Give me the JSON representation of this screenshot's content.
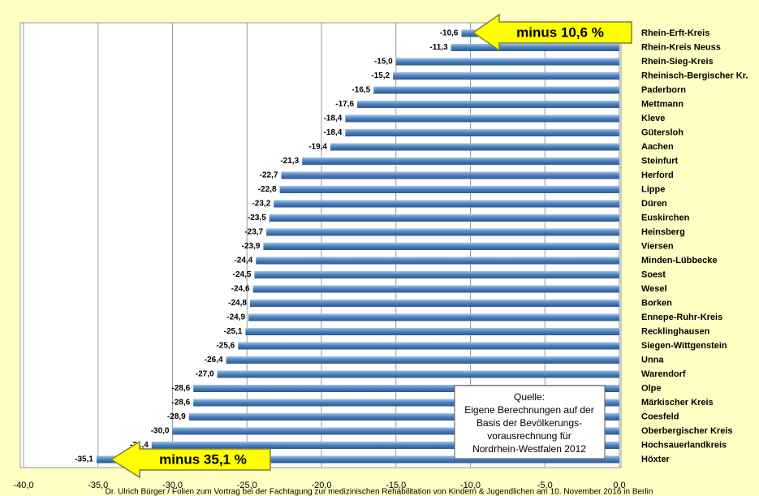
{
  "chart_data": {
    "type": "bar",
    "orientation": "horizontal",
    "categories": [
      "Rhein-Erft-Kreis",
      "Rhein-Kreis Neuss",
      "Rhein-Sieg-Kreis",
      "Rheinisch-Bergischer Kr.",
      "Paderborn",
      "Mettmann",
      "Kleve",
      "Gütersloh",
      "Aachen",
      "Steinfurt",
      "Herford",
      "Lippe",
      "Düren",
      "Euskirchen",
      "Heinsberg",
      "Viersen",
      "Minden-Lübbecke",
      "Soest",
      "Wesel",
      "Borken",
      "Ennepe-Ruhr-Kreis",
      "Recklinghausen",
      "Siegen-Wittgenstein",
      "Unna",
      "Warendorf",
      "Olpe",
      "Märkischer Kreis",
      "Coesfeld",
      "Oberbergischer Kreis",
      "Hochsauerlandkreis",
      "Höxter"
    ],
    "values": [
      -10.6,
      -11.3,
      -15.0,
      -15.2,
      -16.5,
      -17.6,
      -18.4,
      -18.4,
      -19.4,
      -21.3,
      -22.7,
      -22.8,
      -23.2,
      -23.5,
      -23.7,
      -23.9,
      -24.4,
      -24.5,
      -24.6,
      -24.8,
      -24.9,
      -25.1,
      -25.6,
      -26.4,
      -27.0,
      -28.6,
      -28.6,
      -28.9,
      -30.0,
      -31.4,
      -35.1
    ],
    "value_labels": [
      "-10,6",
      "-11,3",
      "-15,0",
      "-15,2",
      "-16,5",
      "-17,6",
      "-18,4",
      "-18,4",
      "-19,4",
      "-21,3",
      "-22,7",
      "-22,8",
      "-23,2",
      "-23,5",
      "-23,7",
      "-23,9",
      "-24,4",
      "-24,5",
      "-24,6",
      "-24,8",
      "-24,9",
      "-25,1",
      "-25,6",
      "-26,4",
      "-27,0",
      "-28,6",
      "-28,6",
      "-28,9",
      "-30,0",
      "-31,4",
      "-35,1"
    ],
    "color": "#4a7ebb",
    "xlim": [
      -40,
      0
    ],
    "xticks": [
      {
        "value": -40,
        "label": "-40,0"
      },
      {
        "value": -35,
        "label": "-35,0"
      },
      {
        "value": -30,
        "label": "-30,0"
      },
      {
        "value": -25,
        "label": "-25,0"
      },
      {
        "value": -20,
        "label": "-20,0"
      },
      {
        "value": -15,
        "label": "-15,0"
      },
      {
        "value": -10,
        "label": "-10,0"
      },
      {
        "value": -5,
        "label": "-5,0"
      },
      {
        "value": 0,
        "label": "0,0"
      }
    ],
    "grid": true,
    "annotations": [
      "minus 10,6 %",
      "minus 35,1 %"
    ],
    "source": [
      "Quelle:",
      "Eigene Berechnungen auf der",
      "Basis der  Bevölkerungs-",
      "vorausrechnung für",
      "Nordrhein-Westfalen 2012"
    ],
    "footer": "Dr. Ulrich Bürger / Folien zum Vortrag bei der  Fachtagung zur medizinischen Rehabilitation von Kindern & Jugendlichen am 10. November 2016 in Berlin"
  }
}
